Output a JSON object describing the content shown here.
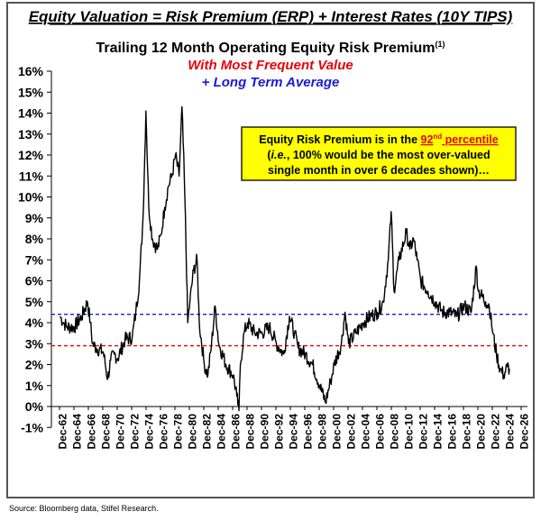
{
  "header": "Equity Valuation =  Risk Premium (ERP) + Interest Rates (10Y TIPS)",
  "source": "Source: Bloomberg data, Stifel Research.",
  "annotation": {
    "line1_pre": "Equity Risk Premium is in the ",
    "line1_num": "92",
    "line1_sup": "nd",
    "line1_post": " percentile",
    "line2_pre": "(",
    "line2_ie": "i.e.",
    "line2_post": ", 100% would be the most over-valued",
    "line3": "single month in over 6 decades shown)…"
  },
  "chart_data": {
    "type": "line",
    "title": "Trailing 12 Month Operating Equity Risk Premium",
    "title_sup": "(1)",
    "subtitle_red": "With Most Frequent Value",
    "subtitle_blue": "+ Long Term Average",
    "ylim": [
      -1,
      16
    ],
    "yticks": [
      "-1%",
      "0%",
      "1%",
      "2%",
      "3%",
      "4%",
      "5%",
      "6%",
      "7%",
      "8%",
      "9%",
      "10%",
      "11%",
      "12%",
      "13%",
      "14%",
      "15%",
      "16%"
    ],
    "xticks": [
      "Dec-62",
      "Dec-64",
      "Dec-66",
      "Dec-68",
      "Dec-70",
      "Dec-72",
      "Dec-74",
      "Dec-76",
      "Dec-78",
      "Dec-80",
      "Dec-82",
      "Dec-84",
      "Dec-86",
      "Dec-88",
      "Dec-90",
      "Dec-92",
      "Dec-94",
      "Dec-96",
      "Dec-98",
      "Dec-00",
      "Dec-02",
      "Dec-04",
      "Dec-06",
      "Dec-08",
      "Dec-10",
      "Dec-12",
      "Dec-14",
      "Dec-16",
      "Dec-18",
      "Dec-20",
      "Dec-22",
      "Dec-24",
      "Dec-26"
    ],
    "grid": false,
    "reference_lines": [
      {
        "label": "Most Frequent Value",
        "value": 2.9,
        "color": "#e8000b",
        "style": "dashed"
      },
      {
        "label": "Long Term Average",
        "value": 4.4,
        "color": "#1a1ad6",
        "style": "dashed"
      }
    ],
    "series": [
      {
        "color": "#000000",
        "points": [
          [
            1963,
            4.3
          ],
          [
            1963.5,
            4.0
          ],
          [
            1964,
            3.8
          ],
          [
            1965,
            3.8
          ],
          [
            1966,
            4.3
          ],
          [
            1966.8,
            5.0
          ],
          [
            1967.2,
            4.0
          ],
          [
            1967.5,
            3.0
          ],
          [
            1968,
            2.8
          ],
          [
            1969,
            2.6
          ],
          [
            1969.6,
            1.3
          ],
          [
            1970,
            2.2
          ],
          [
            1970.5,
            2.5
          ],
          [
            1971,
            2.3
          ],
          [
            1972,
            3.2
          ],
          [
            1973,
            3.3
          ],
          [
            1973.5,
            4.5
          ],
          [
            1974,
            6
          ],
          [
            1974.5,
            9
          ],
          [
            1974.9,
            14.1
          ],
          [
            1975.3,
            9.5
          ],
          [
            1975.8,
            8
          ],
          [
            1976.5,
            7.5
          ],
          [
            1977,
            8.2
          ],
          [
            1977.5,
            9.5
          ],
          [
            1978,
            10.5
          ],
          [
            1978.5,
            11
          ],
          [
            1979,
            12
          ],
          [
            1979.5,
            11
          ],
          [
            1979.9,
            14.3
          ],
          [
            1980.3,
            10
          ],
          [
            1980.7,
            4
          ],
          [
            1981,
            5
          ],
          [
            1981.5,
            6.5
          ],
          [
            1982,
            7
          ],
          [
            1982.3,
            4
          ],
          [
            1983,
            2
          ],
          [
            1983.5,
            1.5
          ],
          [
            1984,
            3
          ],
          [
            1984.5,
            4.8
          ],
          [
            1985,
            3
          ],
          [
            1986,
            2
          ],
          [
            1987,
            1.5
          ],
          [
            1987.5,
            0.5
          ],
          [
            1987.8,
            -0.2
          ],
          [
            1988,
            2
          ],
          [
            1988.5,
            3.5
          ],
          [
            1989,
            4
          ],
          [
            1990,
            3.5
          ],
          [
            1991,
            3.5
          ],
          [
            1992,
            3.8
          ],
          [
            1993,
            3
          ],
          [
            1994,
            2.5
          ],
          [
            1994.8,
            4.3
          ],
          [
            1995.5,
            3.5
          ],
          [
            1996,
            2.8
          ],
          [
            1997,
            2.5
          ],
          [
            1998,
            2.0
          ],
          [
            1999,
            1.0
          ],
          [
            1999.8,
            0.2
          ],
          [
            2000.5,
            1.2
          ],
          [
            2001,
            2
          ],
          [
            2002,
            3.0
          ],
          [
            2002.5,
            4.5
          ],
          [
            2003,
            3.0
          ],
          [
            2004,
            3.5
          ],
          [
            2005,
            4.0
          ],
          [
            2006,
            4.3
          ],
          [
            2007,
            4.5
          ],
          [
            2007.8,
            5
          ],
          [
            2008.5,
            7
          ],
          [
            2008.9,
            9.3
          ],
          [
            2009.3,
            5.5
          ],
          [
            2010,
            7
          ],
          [
            2011,
            8.3
          ],
          [
            2011.5,
            7.5
          ],
          [
            2012,
            8
          ],
          [
            2012.5,
            7
          ],
          [
            2013,
            6
          ],
          [
            2014,
            5.5
          ],
          [
            2015,
            5
          ],
          [
            2016,
            4.5
          ],
          [
            2017,
            4.5
          ],
          [
            2018,
            4.3
          ],
          [
            2019,
            4.8
          ],
          [
            2020,
            4.5
          ],
          [
            2020.7,
            6.7
          ],
          [
            2021,
            5.5
          ],
          [
            2022,
            5.0
          ],
          [
            2022.5,
            4.8
          ],
          [
            2023,
            3.5
          ],
          [
            2023.5,
            2.5
          ],
          [
            2024,
            1.8
          ],
          [
            2024.5,
            1.5
          ],
          [
            2025,
            1.9
          ],
          [
            2025.3,
            1.8
          ]
        ]
      }
    ]
  }
}
